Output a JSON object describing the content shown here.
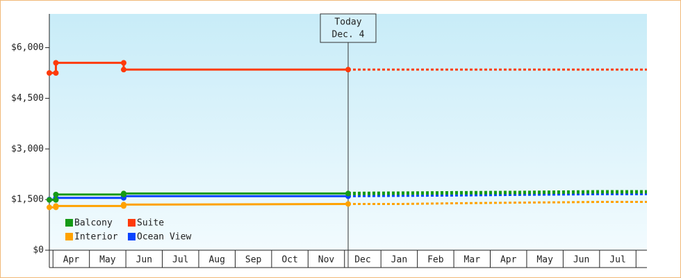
{
  "chart_data": {
    "type": "line",
    "x": [
      -0.1,
      0.08,
      0.08,
      1.94,
      1.94,
      8.1
    ],
    "forecast_x": [
      8.1,
      9.6,
      11.0,
      12.8,
      14.0,
      15.0,
      16.3
    ],
    "series": [
      {
        "name": "Balcony",
        "color": "#169a16",
        "values": [
          1490,
          1490,
          1650,
          1650,
          1680,
          1680
        ],
        "forecast": [
          1680,
          1690,
          1700,
          1710,
          1720,
          1730,
          1730
        ]
      },
      {
        "name": "Suite",
        "color": "#ff3a0a",
        "values": [
          5250,
          5250,
          5550,
          5550,
          5350,
          5350
        ],
        "forecast": [
          5350,
          5350,
          5350,
          5350,
          5350,
          5350,
          5350
        ]
      },
      {
        "name": "Interior",
        "color": "#ffa200",
        "values": [
          1270,
          1270,
          1310,
          1310,
          1350,
          1370
        ],
        "forecast": [
          1370,
          1370,
          1390,
          1410,
          1420,
          1430,
          1430
        ]
      },
      {
        "name": "Ocean View",
        "color": "#0a44ff",
        "values": [
          1500,
          1500,
          1550,
          1550,
          1600,
          1600
        ],
        "forecast": [
          1600,
          1610,
          1620,
          1640,
          1650,
          1660,
          1660
        ]
      }
    ],
    "xlim": [
      -0.1,
      16.3
    ],
    "xticks": [
      {
        "value": 0.5,
        "label": "Apr"
      },
      {
        "value": 1.5,
        "label": "May"
      },
      {
        "value": 2.5,
        "label": "Jun"
      },
      {
        "value": 3.5,
        "label": "Jul"
      },
      {
        "value": 4.5,
        "label": "Aug"
      },
      {
        "value": 5.5,
        "label": "Sep"
      },
      {
        "value": 6.5,
        "label": "Oct"
      },
      {
        "value": 7.5,
        "label": "Nov"
      },
      {
        "value": 8.5,
        "label": "Dec"
      },
      {
        "value": 9.5,
        "label": "Jan"
      },
      {
        "value": 10.5,
        "label": "Feb"
      },
      {
        "value": 11.5,
        "label": "Mar"
      },
      {
        "value": 12.5,
        "label": "Apr"
      },
      {
        "value": 13.5,
        "label": "May"
      },
      {
        "value": 14.5,
        "label": "Jun"
      },
      {
        "value": 15.5,
        "label": "Jul"
      }
    ],
    "ylim": [
      0,
      7000
    ],
    "yticks": [
      {
        "value": 0,
        "label": "$0"
      },
      {
        "value": 1500,
        "label": "$1,500"
      },
      {
        "value": 3000,
        "label": "$3,000"
      },
      {
        "value": 4500,
        "label": "$4,500"
      },
      {
        "value": 6000,
        "label": "$6,000"
      }
    ],
    "annotation": {
      "x": 8.1,
      "lines": [
        "Today",
        "Dec. 4"
      ]
    }
  }
}
